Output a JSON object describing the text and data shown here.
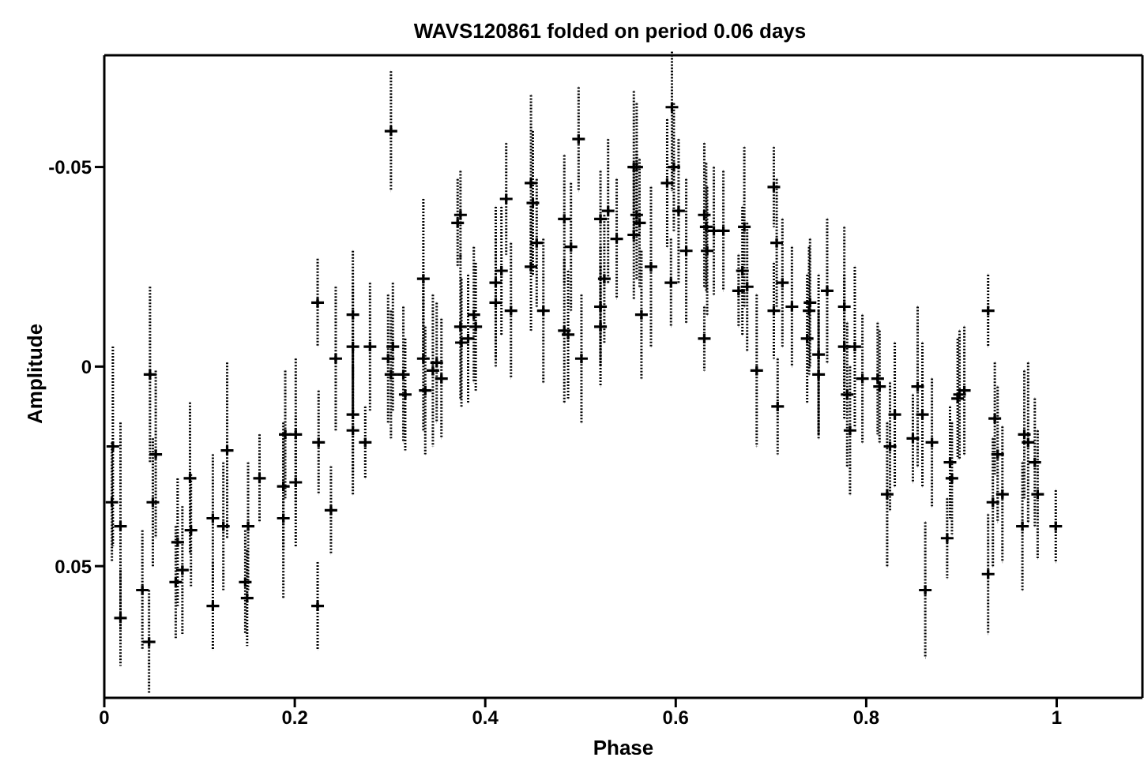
{
  "chart_data": {
    "type": "scatter",
    "title": "WAVS120861 folded on period 0.06 days",
    "xlabel": "Phase",
    "ylabel": "Amplitude",
    "xlim": [
      0,
      1.09
    ],
    "ylim": [
      0.083,
      -0.078
    ],
    "xticks": [
      0,
      0.2,
      0.4,
      0.6,
      0.8,
      1
    ],
    "yticks": [
      -0.05,
      0,
      0.05
    ],
    "marker": "cross",
    "series": [
      {
        "color": "#000000",
        "x": [
          0.009,
          0.008,
          0.017,
          0.017,
          0.04,
          0.047,
          0.048,
          0.054,
          0.051,
          0.077,
          0.075,
          0.082,
          0.09,
          0.091,
          0.114,
          0.114,
          0.129,
          0.125,
          0.148,
          0.15,
          0.151,
          0.163,
          0.188,
          0.188,
          0.19,
          0.201,
          0.201,
          0.224,
          0.225,
          0.224,
          0.238,
          0.243,
          0.261,
          0.261,
          0.261,
          0.261,
          0.274,
          0.279,
          0.301,
          0.298,
          0.303,
          0.301,
          0.314,
          0.316,
          0.335,
          0.335,
          0.337,
          0.345,
          0.349,
          0.354,
          0.371,
          0.374,
          0.374,
          0.375,
          0.382,
          0.388,
          0.39,
          0.411,
          0.411,
          0.417,
          0.422,
          0.427,
          0.448,
          0.45,
          0.454,
          0.448,
          0.461,
          0.483,
          0.49,
          0.483,
          0.487,
          0.498,
          0.501,
          0.521,
          0.521,
          0.521,
          0.529,
          0.525,
          0.538,
          0.556,
          0.559,
          0.559,
          0.562,
          0.556,
          0.574,
          0.564,
          0.596,
          0.591,
          0.598,
          0.603,
          0.595,
          0.611,
          0.63,
          0.632,
          0.633,
          0.63,
          0.64,
          0.65,
          0.672,
          0.67,
          0.666,
          0.675,
          0.685,
          0.703,
          0.706,
          0.703,
          0.707,
          0.712,
          0.722,
          0.74,
          0.741,
          0.738,
          0.75,
          0.75,
          0.759,
          0.777,
          0.777,
          0.78,
          0.788,
          0.783,
          0.796,
          0.812,
          0.814,
          0.822,
          0.825,
          0.83,
          0.849,
          0.854,
          0.859,
          0.862,
          0.869,
          0.885,
          0.888,
          0.89,
          0.896,
          0.898,
          0.903,
          0.928,
          0.928,
          0.935,
          0.933,
          0.938,
          0.943,
          0.964,
          0.966,
          0.97,
          0.977,
          0.98,
          0.999
        ],
        "values": [
          0.02,
          0.034,
          0.04,
          0.063,
          0.056,
          0.069,
          0.002,
          0.022,
          0.034,
          0.044,
          0.054,
          0.051,
          0.028,
          0.041,
          0.06,
          0.038,
          0.021,
          0.04,
          0.054,
          0.058,
          0.04,
          0.028,
          0.038,
          0.03,
          0.017,
          0.017,
          0.029,
          -0.016,
          0.019,
          0.06,
          0.036,
          -0.002,
          -0.013,
          -0.005,
          0.012,
          0.016,
          0.019,
          -0.005,
          -0.059,
          -0.002,
          -0.005,
          0.002,
          0.002,
          0.007,
          -0.022,
          -0.002,
          0.006,
          0.001,
          -0.001,
          0.003,
          -0.036,
          -0.038,
          -0.01,
          -0.006,
          -0.007,
          -0.013,
          -0.01,
          -0.021,
          -0.016,
          -0.024,
          -0.042,
          -0.014,
          -0.046,
          -0.041,
          -0.031,
          -0.025,
          -0.014,
          -0.037,
          -0.03,
          -0.009,
          -0.008,
          -0.057,
          -0.002,
          -0.037,
          -0.015,
          -0.01,
          -0.039,
          -0.022,
          -0.032,
          -0.05,
          -0.05,
          -0.038,
          -0.036,
          -0.033,
          -0.025,
          -0.013,
          -0.065,
          -0.046,
          -0.05,
          -0.039,
          -0.021,
          -0.029,
          -0.038,
          -0.035,
          -0.029,
          -0.007,
          -0.034,
          -0.034,
          -0.035,
          -0.024,
          -0.019,
          -0.02,
          0.001,
          -0.045,
          -0.031,
          -0.014,
          0.01,
          -0.021,
          -0.015,
          -0.014,
          -0.016,
          -0.007,
          -0.003,
          0.002,
          -0.019,
          -0.015,
          -0.005,
          0.007,
          -0.005,
          0.016,
          0.003,
          0.003,
          0.005,
          0.032,
          0.02,
          0.012,
          0.018,
          0.005,
          0.012,
          0.056,
          0.019,
          0.043,
          0.024,
          0.028,
          0.008,
          0.007,
          0.006,
          -0.014,
          0.052,
          0.013,
          0.034,
          0.022,
          0.032,
          0.04,
          0.017,
          0.019,
          0.024,
          0.032,
          0.04
        ],
        "errors": [
          0.025,
          0.015,
          0.026,
          0.012,
          0.015,
          0.013,
          0.022,
          0.021,
          0.016,
          0.016,
          0.014,
          0.016,
          0.019,
          0.014,
          0.011,
          0.016,
          0.022,
          0.016,
          0.013,
          0.012,
          0.016,
          0.011,
          0.02,
          0.016,
          0.016,
          0.019,
          0.016,
          0.011,
          0.013,
          0.011,
          0.011,
          0.018,
          0.016,
          0.016,
          0.016,
          0.016,
          0.009,
          0.016,
          0.015,
          0.016,
          0.016,
          0.016,
          0.017,
          0.014,
          0.02,
          0.018,
          0.016,
          0.019,
          0.015,
          0.015,
          0.011,
          0.011,
          0.018,
          0.016,
          0.016,
          0.017,
          0.016,
          0.019,
          0.016,
          0.016,
          0.014,
          0.017,
          0.022,
          0.018,
          0.016,
          0.016,
          0.018,
          0.016,
          0.016,
          0.018,
          0.016,
          0.013,
          0.016,
          0.012,
          0.015,
          0.015,
          0.018,
          0.016,
          0.015,
          0.019,
          0.016,
          0.016,
          0.016,
          0.016,
          0.02,
          0.016,
          0.021,
          0.016,
          0.016,
          0.018,
          0.011,
          0.018,
          0.018,
          0.016,
          0.016,
          0.008,
          0.016,
          0.015,
          0.02,
          0.016,
          0.009,
          0.016,
          0.019,
          0.01,
          0.016,
          0.012,
          0.012,
          0.016,
          0.015,
          0.016,
          0.016,
          0.016,
          0.02,
          0.016,
          0.018,
          0.02,
          0.018,
          0.018,
          0.02,
          0.016,
          0.016,
          0.014,
          0.014,
          0.018,
          0.016,
          0.018,
          0.011,
          0.02,
          0.018,
          0.017,
          0.016,
          0.01,
          0.014,
          0.014,
          0.015,
          0.016,
          0.016,
          0.009,
          0.015,
          0.014,
          0.016,
          0.017,
          0.017,
          0.016,
          0.016,
          0.02,
          0.016,
          0.016,
          0.009
        ]
      }
    ]
  }
}
